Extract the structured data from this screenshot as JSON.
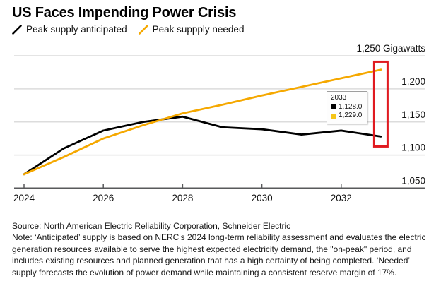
{
  "page": {
    "title": "US Faces Impending Power Crisis"
  },
  "legend": [
    {
      "label": "Peak supply anticipated",
      "color": "#000000"
    },
    {
      "label": "Peak suppply needed",
      "color": "#F5A800"
    }
  ],
  "chart_data": {
    "type": "line",
    "title": "US Faces Impending Power Crisis",
    "unit_label": "Gigawatts",
    "x": [
      2024,
      2025,
      2026,
      2027,
      2028,
      2029,
      2030,
      2031,
      2032,
      2033
    ],
    "series": [
      {
        "name": "Peak supply anticipated",
        "color": "#000000",
        "values": [
          1071,
          1110,
          1137,
          1150,
          1158,
          1142,
          1139,
          1131,
          1137,
          1128
        ]
      },
      {
        "name": "Peak suppply needed",
        "color": "#F5A800",
        "values": [
          1071,
          1097,
          1125,
          1145,
          1163,
          1176,
          1190,
          1203,
          1216,
          1229
        ]
      }
    ],
    "ylim": [
      1050,
      1250
    ],
    "y_ticks": [
      1050,
      1100,
      1150,
      1200,
      1250
    ],
    "y_tick_labels": [
      "1,050",
      "1,100",
      "1,150",
      "1,200",
      "1,250 Gigawatts"
    ],
    "x_ticks": [
      2024,
      2026,
      2028,
      2030,
      2032
    ],
    "x_tick_labels": [
      "2024",
      "2026",
      "2028",
      "2030",
      "2032"
    ],
    "grid": "horizontal",
    "legend_position": "top-left",
    "annotation": {
      "type": "highlight-box",
      "year": 2033,
      "value_min": 1113,
      "value_max": 1241,
      "color": "#E01A20"
    },
    "colors": {
      "gridline": "#dcdcdc",
      "axis": "#58595b",
      "highlight": "#E01A20"
    }
  },
  "tooltip": {
    "year": "2033",
    "rows": [
      {
        "series": "Peak supply anticipated",
        "color": "#000000",
        "value": "1,128.0"
      },
      {
        "series": "Peak suppply needed",
        "color": "#F5C518",
        "value": "1,229.0"
      }
    ]
  },
  "footer": {
    "source": "Source: North American Electric Reliability Corporation, Schneider Electric",
    "note": "Note: ‘Anticipated’ supply is based on NERC's 2024 long-term reliability assessment and evaluates the electric generation resources available to serve the highest expected electricity demand, the \"on-peak\" period, and includes existing resources and planned generation that has a high certainty of being completed. ‘Needed’ supply forecasts the evolution of power demand while maintaining a consistent reserve margin of 17%."
  }
}
